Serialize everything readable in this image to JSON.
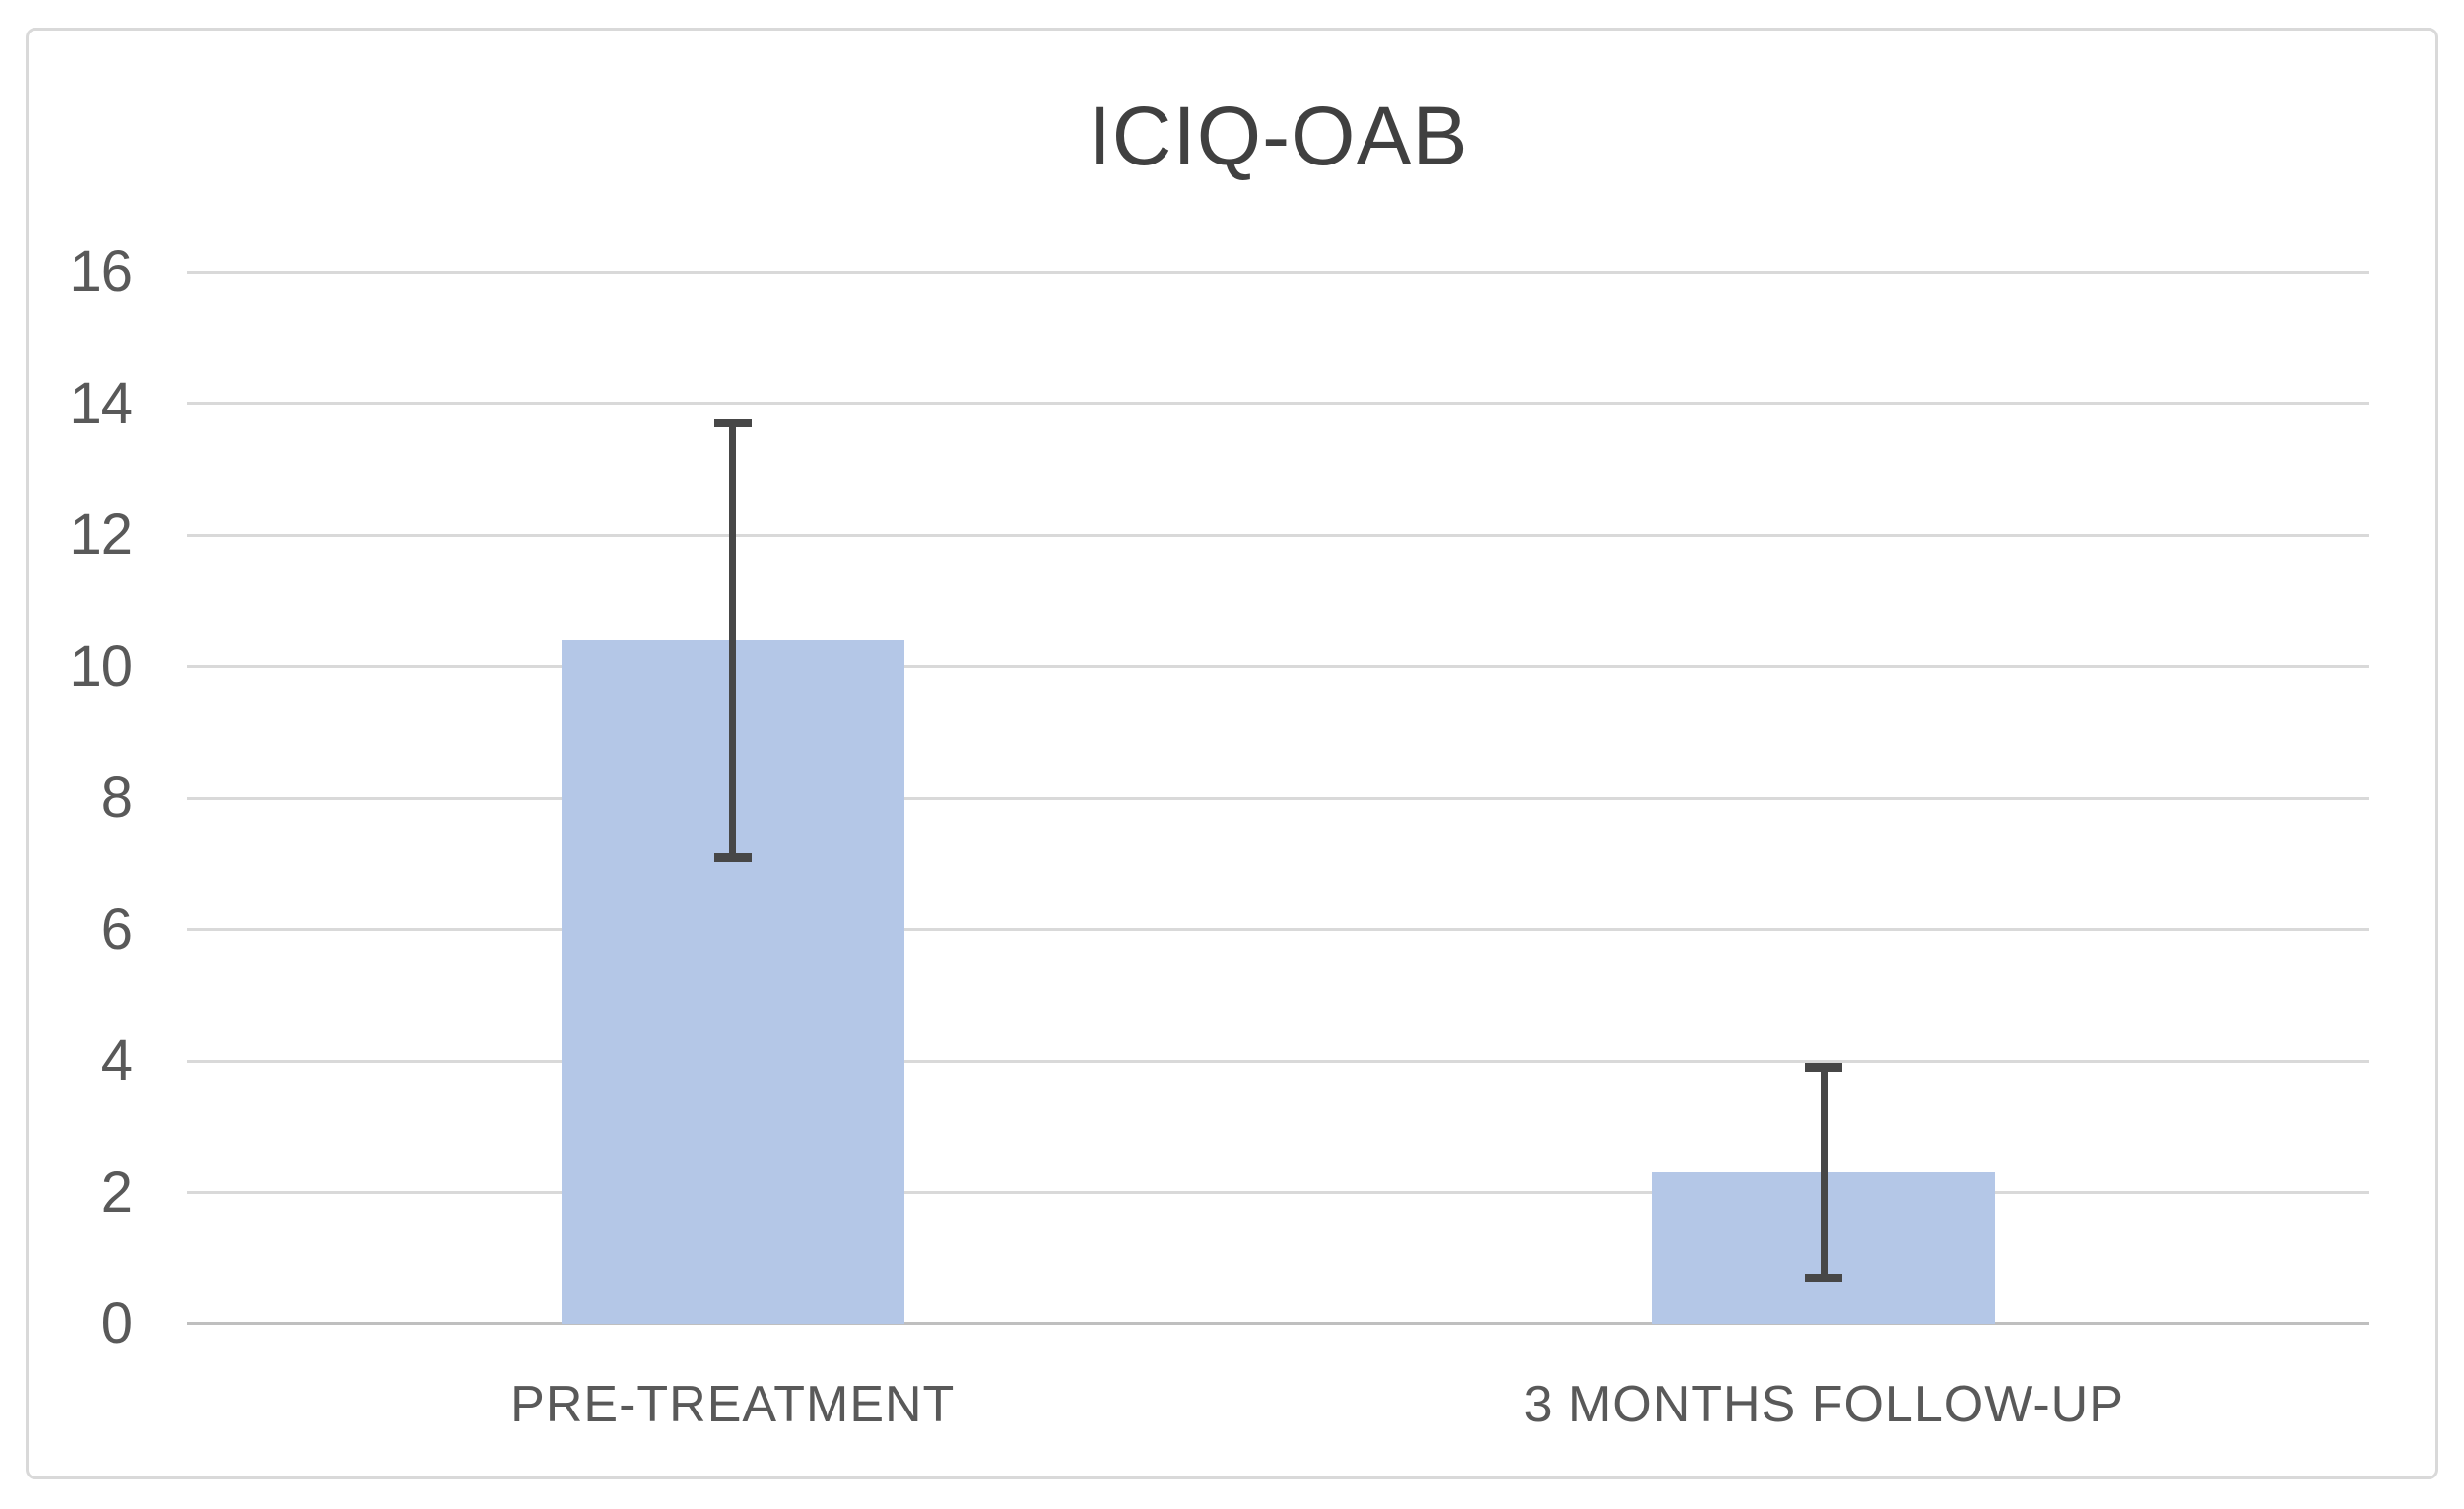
{
  "chart_data": {
    "type": "bar",
    "title": "ICIQ-OAB",
    "categories": [
      "PRE-TREATMENT",
      "3 MONTHS FOLLOW-UP"
    ],
    "values": [
      10.4,
      2.3
    ],
    "error_low": [
      7.1,
      0.7
    ],
    "error_high": [
      13.7,
      3.9
    ],
    "xlabel": "",
    "ylabel": "",
    "ylim": [
      0,
      16
    ],
    "ytick_step": 2,
    "ytick_labels": [
      "0",
      "2",
      "4",
      "6",
      "8",
      "10",
      "12",
      "14",
      "16"
    ],
    "grid": true,
    "legend_position": "none",
    "bar_color": "#b4c7e7",
    "error_bar_color": "#474747",
    "gridline_color": "#d9d9d9",
    "axis_line_color": "#bfbfbf",
    "title_color": "#404040",
    "tick_label_color": "#595959"
  }
}
